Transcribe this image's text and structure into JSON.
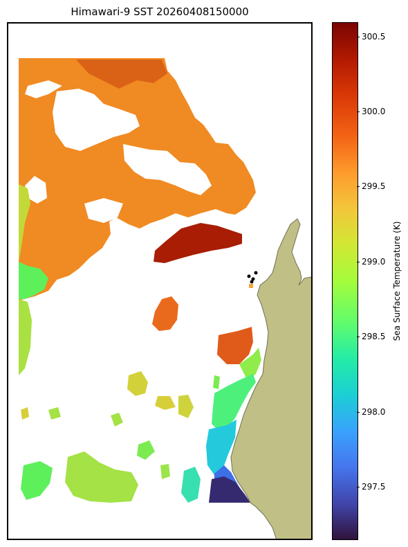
{
  "chart_data": {
    "type": "heatmap",
    "title": "Himawari-9 SST 20260408150000",
    "colorbar": {
      "label": "Sea Surface Temperature (K)",
      "min": 297.15,
      "max": 300.6,
      "ticks": [
        "297.5",
        "298.0",
        "298.5",
        "299.0",
        "299.5",
        "300.0",
        "300.5"
      ],
      "colormap": "turbo"
    },
    "land_color": "#bfbf86",
    "coastline_color": "#707055",
    "station_marker_color": "#000000",
    "regions": [
      {
        "name": "north warm area",
        "temperature": 300.2
      },
      {
        "name": "central arm",
        "temperature": 300.4
      },
      {
        "name": "west edge",
        "temperature": 299.3
      },
      {
        "name": "small central patch",
        "temperature": 300.0
      },
      {
        "name": "near-coast patch",
        "temperature": 300.0
      },
      {
        "name": "south-east cool water",
        "temperature": 297.5
      },
      {
        "name": "south-west patches",
        "temperature": 298.8
      }
    ]
  }
}
